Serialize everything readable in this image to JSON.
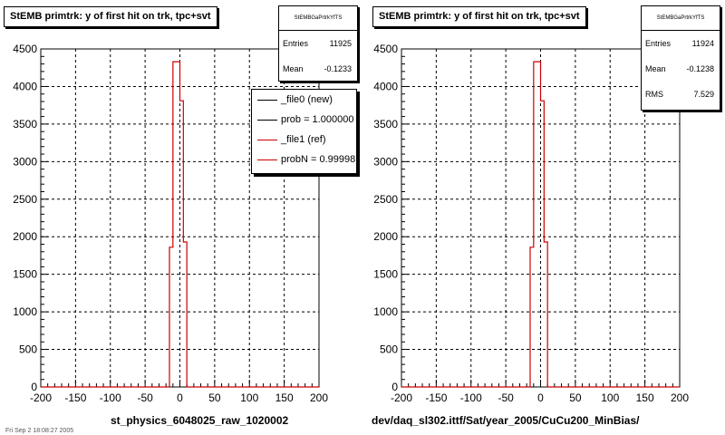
{
  "chart_data": [
    {
      "type": "histogram",
      "title": "StEMB primtrk: y of first hit on trk, tpc+svt",
      "xlabel": "st_physics_6048025_raw_1020002",
      "ylabel": "",
      "xlim": [
        -200,
        200
      ],
      "ylim": [
        0,
        4500
      ],
      "xticks": [
        "-200",
        "-150",
        "-100",
        "-50",
        "0",
        "50",
        "100",
        "150",
        "200"
      ],
      "yticks": [
        "0",
        "500",
        "1000",
        "1500",
        "2000",
        "2500",
        "3000",
        "3500",
        "4000",
        "4500"
      ],
      "grid": true,
      "stats": {
        "name": "StEMBGaPrtrkYfTS",
        "Entries": "11925",
        "Mean": "-0.1233"
      },
      "legend": {
        "position": "top-right",
        "entries": [
          "_file0 (new)",
          "prob = 1.000000",
          "_file1 (ref)",
          "probN = 0.99998"
        ],
        "colors": [
          "#000000",
          "#000000",
          "#cc0000",
          "#cc0000"
        ]
      },
      "series": [
        {
          "name": "_file1 (ref)",
          "color": "#cc0000",
          "bins": [
            [
              -200,
              -15,
              0
            ],
            [
              -15,
              -10,
              1860
            ],
            [
              -10,
              -5,
              4330
            ],
            [
              -5,
              0,
              4330
            ],
            [
              0,
              5,
              3810
            ],
            [
              5,
              10,
              1930
            ],
            [
              10,
              15,
              0
            ],
            [
              15,
              200,
              0
            ]
          ]
        }
      ]
    },
    {
      "type": "histogram",
      "title": "StEMB primtrk: y of first hit on trk, tpc+svt",
      "xlabel": "dev/daq_sl302.ittf/Sat/year_2005/CuCu200_MinBias/",
      "ylabel": "",
      "xlim": [
        -200,
        200
      ],
      "ylim": [
        0,
        4500
      ],
      "xticks": [
        "-200",
        "-150",
        "-100",
        "-50",
        "0",
        "50",
        "100",
        "150",
        "200"
      ],
      "yticks": [
        "0",
        "500",
        "1000",
        "1500",
        "2000",
        "2500",
        "3000",
        "3500",
        "4000",
        "4500"
      ],
      "grid": true,
      "stats": {
        "name": "StEMBGaPrtrkYfTS",
        "Entries": "11924",
        "Mean": "-0.1238",
        "RMS": "7.529"
      },
      "series": [
        {
          "name": "",
          "color": "#cc0000",
          "bins": [
            [
              -200,
              -15,
              0
            ],
            [
              -15,
              -10,
              1860
            ],
            [
              -10,
              -5,
              4330
            ],
            [
              -5,
              0,
              4330
            ],
            [
              0,
              5,
              3810
            ],
            [
              5,
              10,
              1930
            ],
            [
              10,
              15,
              0
            ],
            [
              15,
              200,
              0
            ]
          ]
        }
      ]
    }
  ],
  "timestamp": "Fri Sep 2 18:08:27 2005"
}
